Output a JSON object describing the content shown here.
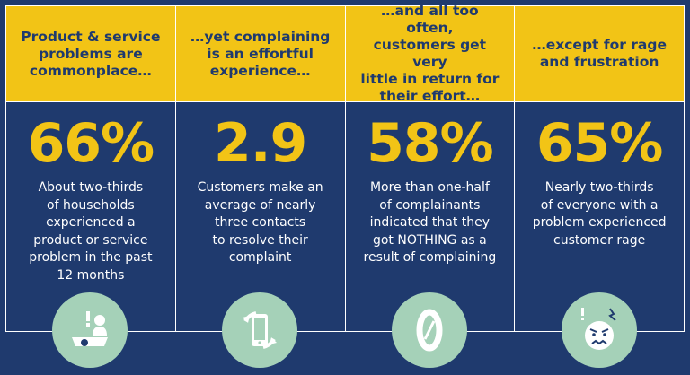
{
  "panels": [
    {
      "header": "Product & service\nproblems are\ncommonplace…",
      "stat": "66%",
      "description": "About two-thirds\nof households\nexperienced a\nproduct or service\nproblem in the past\n12 months",
      "icon": "person-at-desk-alert-icon"
    },
    {
      "header": "…yet complaining\nis an effortful\nexperience…",
      "stat": "2.9",
      "description": "Customers make an\naverage of nearly\nthree contacts\nto resolve their\ncomplaint",
      "icon": "phone-refresh-icon"
    },
    {
      "header": "…and all too often,\ncustomers get very\nlittle in return for\ntheir effort…",
      "stat": "58%",
      "description": "More than one-half\nof complainants\nindicated that they\ngot NOTHING as a\nresult of complaining",
      "icon": "zero-icon"
    },
    {
      "header": "…except for rage\nand frustration",
      "stat": "65%",
      "description": "Nearly two-thirds\nof everyone with a\nproblem experienced\ncustomer rage",
      "icon": "angry-face-icon"
    }
  ],
  "colors": {
    "background": "#1f3a6e",
    "header": "#f2c416",
    "stat": "#f2c416",
    "icon_circle": "#a5d1b8",
    "text": "#ffffff"
  }
}
